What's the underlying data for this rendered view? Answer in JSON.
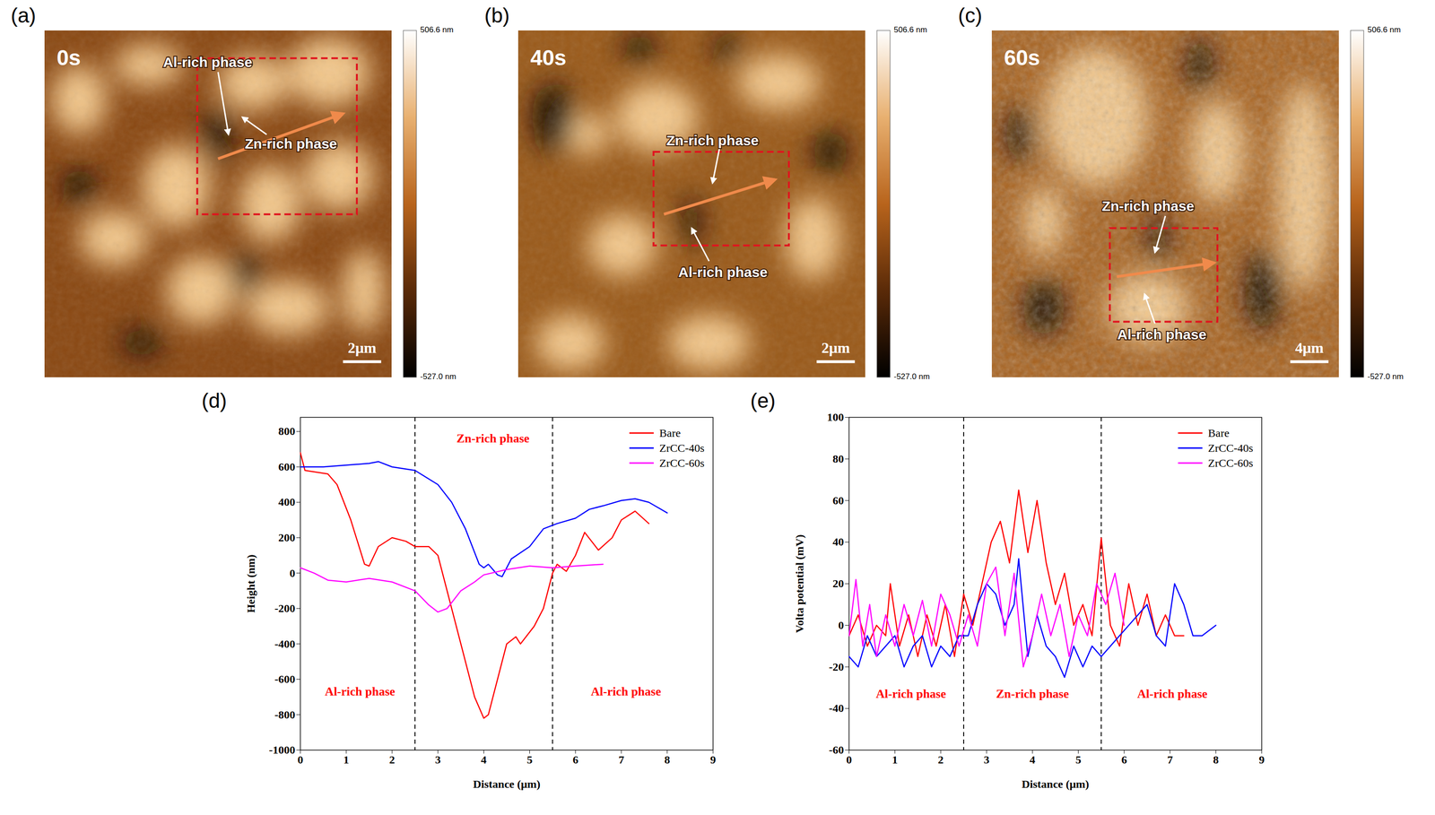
{
  "images": [
    {
      "letter": "(a)",
      "time": "0s",
      "labels": [
        "Al-rich phase",
        "Zn-rich phase"
      ],
      "scale_bar": "2μm",
      "colorbar": {
        "range": [
          -527.0,
          506.6
        ],
        "ticks": [
          {
            "value": 506.6,
            "label": "506.6 nm"
          },
          {
            "value": -527.0,
            "label": "-527.0 nm"
          }
        ]
      }
    },
    {
      "letter": "(b)",
      "time": "40s",
      "labels": [
        "Zn-rich phase",
        "Al-rich phase"
      ],
      "scale_bar": "2μm",
      "colorbar": {
        "range": [
          -527.0,
          506.6
        ],
        "ticks": [
          {
            "value": 506.6,
            "label": "506.6 nm"
          },
          {
            "value": -527.0,
            "label": "-527.0 nm"
          }
        ]
      }
    },
    {
      "letter": "(c)",
      "time": "60s",
      "labels": [
        "Zn-rich phase",
        "Al-rich phase"
      ],
      "scale_bar": "4μm",
      "colorbar": {
        "range": [
          -527.0,
          506.6
        ],
        "ticks": [
          {
            "value": 506.6,
            "label": "506.6 nm"
          },
          {
            "value": -527.0,
            "label": "-527.0 nm"
          }
        ]
      }
    }
  ],
  "chart_data": [
    {
      "type": "line",
      "letter": "(d)",
      "x_label": "Distance (μm)",
      "y_label": "Height (nm)",
      "xlim": [
        0,
        9
      ],
      "xticks": [
        0,
        1,
        2,
        3,
        4,
        5,
        6,
        7,
        8,
        9
      ],
      "ylim": [
        -1000,
        880
      ],
      "yticks": [
        -1000,
        -800,
        -600,
        -400,
        -200,
        0,
        200,
        400,
        600,
        800
      ],
      "grid": false,
      "legend": "upper right",
      "vlines": [
        2.5,
        5.5
      ],
      "annotations": [
        {
          "text": "Al-rich phase",
          "x": 1.3,
          "y": -670,
          "color": "#ff0000"
        },
        {
          "text": "Zn-rich phase",
          "x": 4.2,
          "y": 760,
          "color": "#ff0000"
        },
        {
          "text": "Al-rich phase",
          "x": 7.1,
          "y": -670,
          "color": "#ff0000"
        }
      ],
      "series": [
        {
          "name": "Bare",
          "color": "#ff0000",
          "x": [
            0,
            0.1,
            0.6,
            0.8,
            1.1,
            1.4,
            1.5,
            1.7,
            2.0,
            2.3,
            2.5,
            2.8,
            3.0,
            3.2,
            3.5,
            3.8,
            4.0,
            4.1,
            4.3,
            4.5,
            4.7,
            4.8,
            5.1,
            5.3,
            5.5,
            5.6,
            5.8,
            6.0,
            6.2,
            6.5,
            6.8,
            7.0,
            7.3,
            7.6
          ],
          "values": [
            680,
            580,
            560,
            500,
            300,
            50,
            40,
            150,
            200,
            180,
            150,
            150,
            100,
            -100,
            -400,
            -700,
            -820,
            -800,
            -600,
            -400,
            -360,
            -400,
            -300,
            -200,
            0,
            50,
            10,
            100,
            230,
            130,
            200,
            300,
            350,
            280
          ]
        },
        {
          "name": "ZrCC-40s",
          "color": "#0000ff",
          "x": [
            0,
            0.5,
            1.0,
            1.5,
            1.7,
            2.0,
            2.5,
            3.0,
            3.3,
            3.6,
            3.9,
            4.0,
            4.1,
            4.3,
            4.4,
            4.6,
            5.0,
            5.3,
            5.6,
            6.0,
            6.3,
            6.6,
            7.0,
            7.3,
            7.6,
            8.0
          ],
          "values": [
            600,
            600,
            610,
            620,
            630,
            600,
            580,
            500,
            400,
            250,
            50,
            30,
            50,
            -10,
            -20,
            80,
            150,
            250,
            280,
            310,
            360,
            380,
            410,
            420,
            400,
            340
          ]
        },
        {
          "name": "ZrCC-60s",
          "color": "#ff00ff",
          "x": [
            0,
            0.3,
            0.6,
            1.0,
            1.5,
            2.0,
            2.5,
            2.8,
            3.0,
            3.2,
            3.5,
            3.8,
            4.0,
            4.5,
            5.0,
            5.5,
            6.0,
            6.6
          ],
          "values": [
            30,
            0,
            -40,
            -50,
            -30,
            -50,
            -100,
            -180,
            -220,
            -200,
            -100,
            -50,
            -10,
            20,
            40,
            30,
            40,
            50
          ]
        }
      ]
    },
    {
      "type": "line",
      "letter": "(e)",
      "x_label": "Distance (μm)",
      "y_label": "Volta potential (mV)",
      "xlim": [
        0,
        9
      ],
      "xticks": [
        0,
        1,
        2,
        3,
        4,
        5,
        6,
        7,
        8,
        9
      ],
      "ylim": [
        -60,
        100
      ],
      "yticks": [
        -60,
        -40,
        -20,
        0,
        20,
        40,
        60,
        80,
        100
      ],
      "grid": false,
      "legend": "upper right",
      "vlines": [
        2.5,
        5.5
      ],
      "annotations": [
        {
          "text": "Al-rich phase",
          "x": 1.35,
          "y": -33,
          "color": "#ff0000"
        },
        {
          "text": "Zn-rich phase",
          "x": 4.0,
          "y": -33,
          "color": "#ff0000"
        },
        {
          "text": "Al-rich phase",
          "x": 7.05,
          "y": -33,
          "color": "#ff0000"
        }
      ],
      "series": [
        {
          "name": "Bare",
          "color": "#ff0000",
          "x": [
            0,
            0.2,
            0.4,
            0.6,
            0.8,
            0.9,
            1.1,
            1.3,
            1.5,
            1.7,
            1.9,
            2.1,
            2.3,
            2.5,
            2.7,
            2.9,
            3.1,
            3.3,
            3.5,
            3.7,
            3.9,
            4.1,
            4.3,
            4.5,
            4.7,
            4.9,
            5.1,
            5.3,
            5.5,
            5.7,
            5.9,
            6.1,
            6.3,
            6.5,
            6.7,
            6.9,
            7.1,
            7.3
          ],
          "values": [
            -5,
            5,
            -10,
            0,
            -5,
            20,
            -10,
            5,
            -15,
            5,
            -10,
            10,
            -15,
            15,
            0,
            20,
            40,
            50,
            30,
            65,
            35,
            60,
            30,
            10,
            25,
            0,
            10,
            -5,
            42,
            0,
            -10,
            20,
            0,
            15,
            -5,
            5,
            -5,
            -5
          ]
        },
        {
          "name": "ZrCC-40s",
          "color": "#0000ff",
          "x": [
            0,
            0.2,
            0.4,
            0.6,
            0.8,
            1.0,
            1.2,
            1.4,
            1.6,
            1.8,
            2.0,
            2.2,
            2.4,
            2.6,
            2.8,
            3.0,
            3.2,
            3.4,
            3.6,
            3.7,
            3.9,
            4.1,
            4.3,
            4.5,
            4.7,
            4.9,
            5.1,
            5.3,
            5.5,
            5.7,
            5.9,
            6.1,
            6.3,
            6.5,
            6.7,
            6.9,
            7.1,
            7.3,
            7.5,
            7.7,
            8.0
          ],
          "values": [
            -15,
            -20,
            -5,
            -15,
            -10,
            -5,
            -20,
            -10,
            -5,
            -20,
            -10,
            -15,
            -5,
            -5,
            10,
            20,
            15,
            0,
            10,
            32,
            -15,
            5,
            -10,
            -15,
            -25,
            -10,
            -20,
            -10,
            -15,
            -10,
            -5,
            0,
            5,
            10,
            -5,
            -10,
            20,
            10,
            -5,
            -5,
            0
          ]
        },
        {
          "name": "ZrCC-60s",
          "color": "#ff00ff",
          "x": [
            0,
            0.15,
            0.3,
            0.45,
            0.6,
            0.8,
            1.0,
            1.2,
            1.4,
            1.6,
            1.8,
            2.0,
            2.2,
            2.4,
            2.6,
            2.8,
            3.0,
            3.2,
            3.4,
            3.6,
            3.8,
            4.0,
            4.2,
            4.4,
            4.6,
            4.8,
            5.0,
            5.2,
            5.4,
            5.6,
            5.8,
            6.0
          ],
          "values": [
            -5,
            22,
            -10,
            10,
            -15,
            5,
            -10,
            10,
            -5,
            12,
            -10,
            15,
            5,
            -10,
            5,
            -10,
            20,
            28,
            -5,
            25,
            -20,
            -5,
            15,
            -5,
            10,
            -15,
            5,
            -5,
            20,
            10,
            25,
            0
          ]
        }
      ]
    }
  ]
}
